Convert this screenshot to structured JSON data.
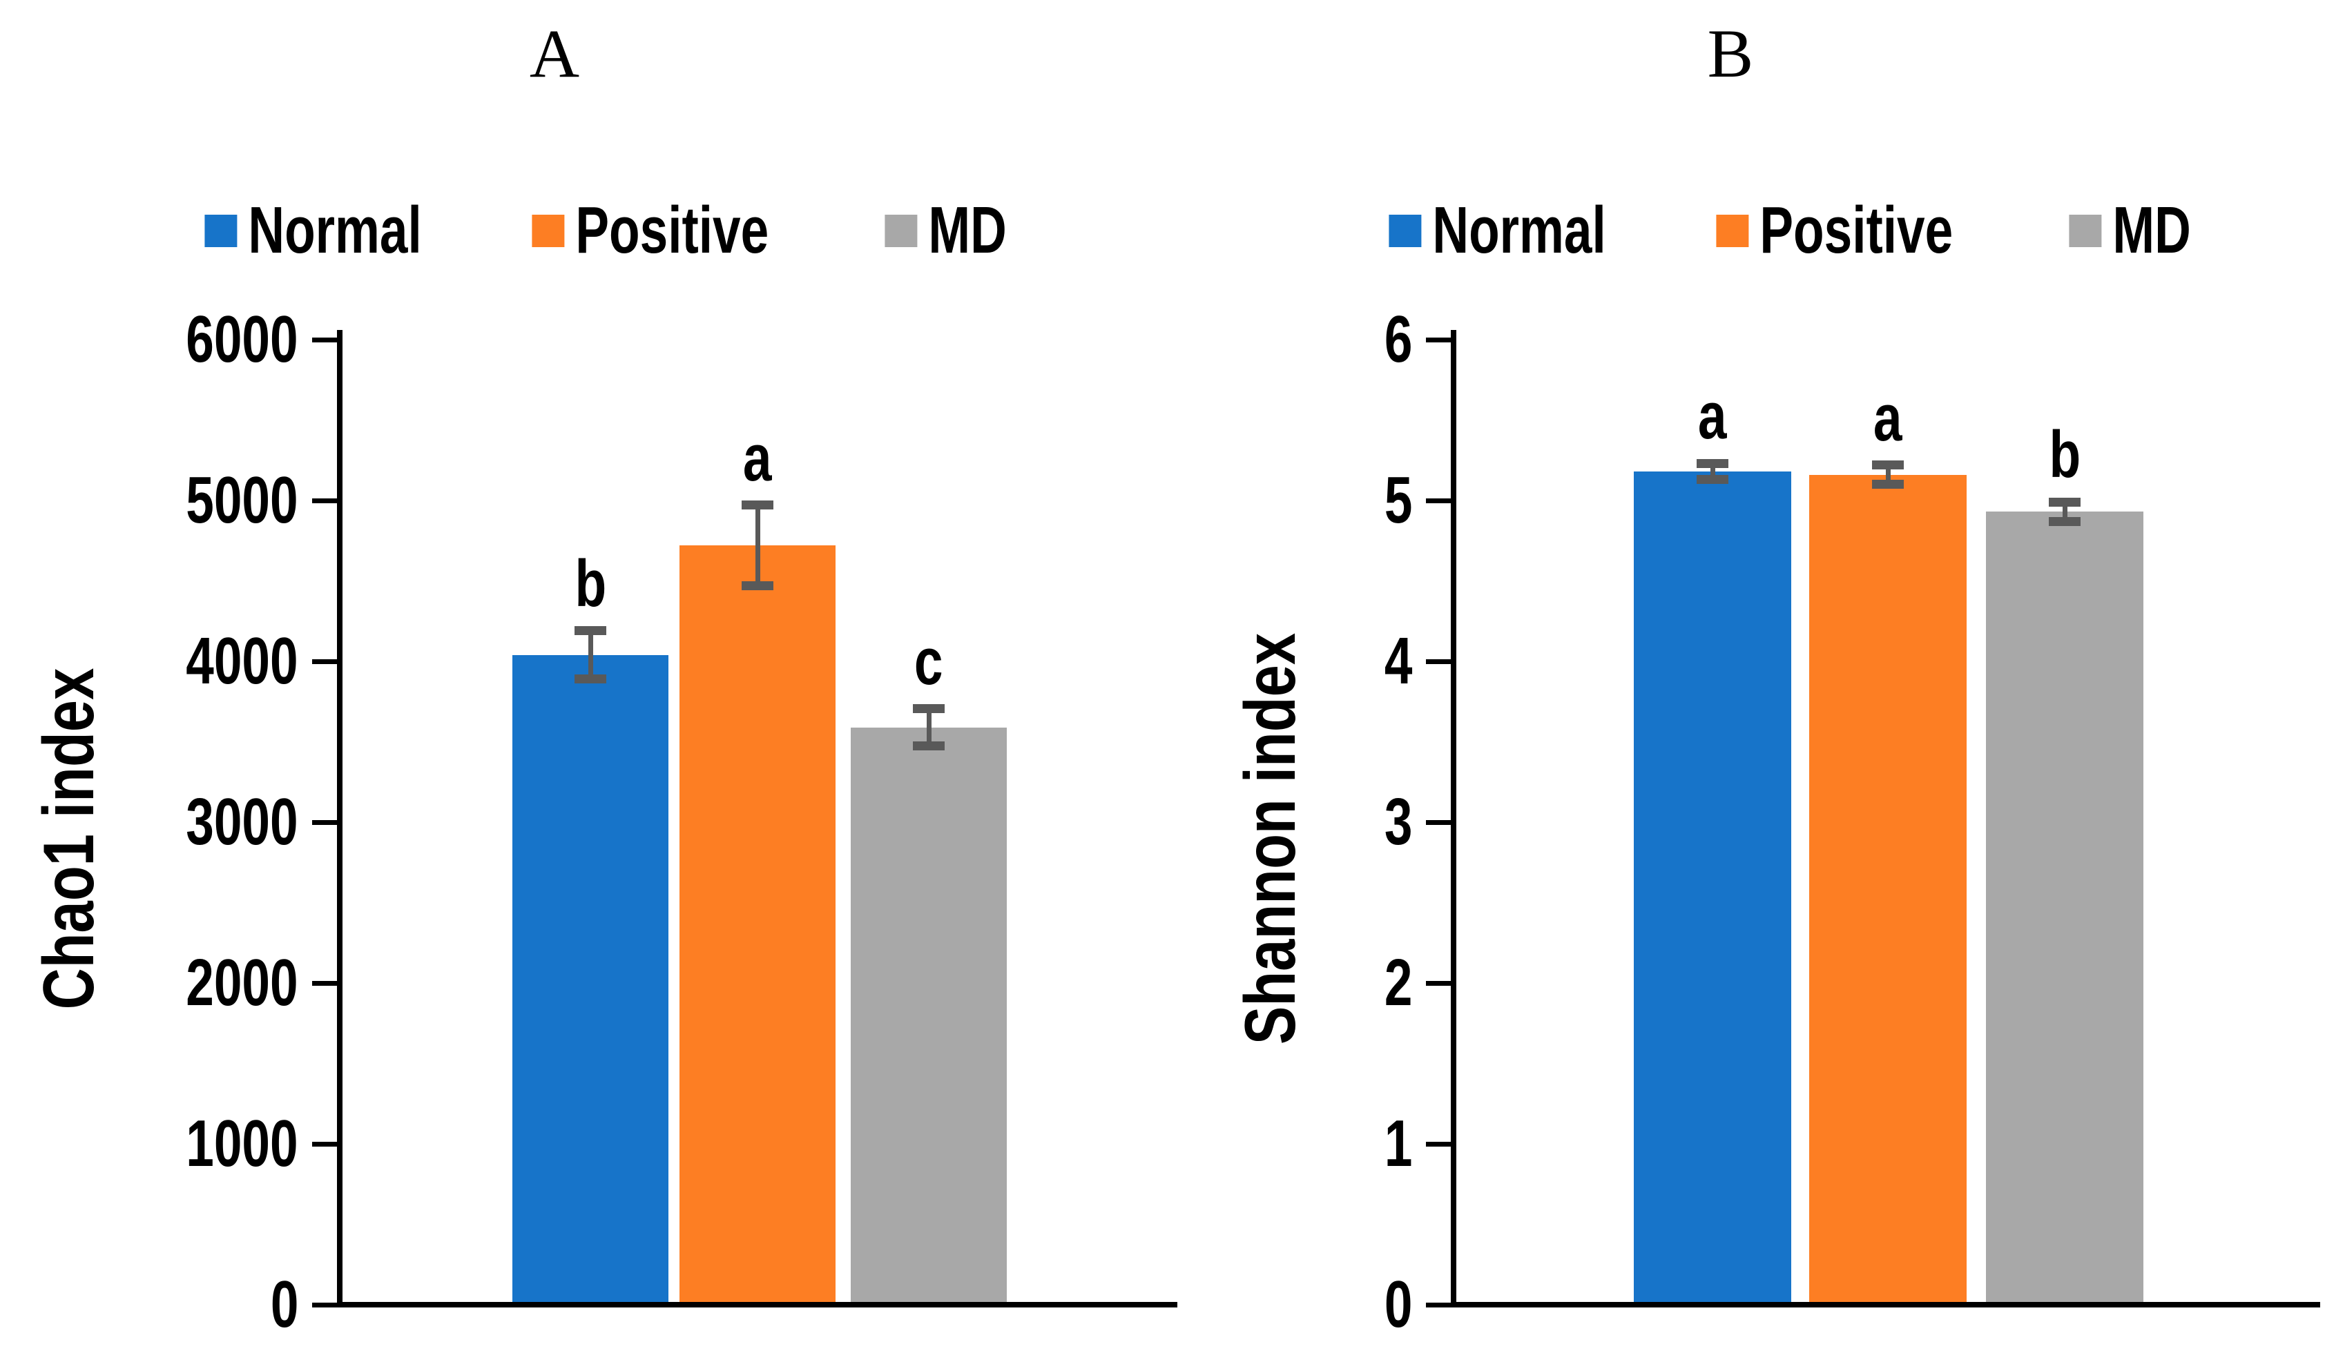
{
  "figure": {
    "background": "#ffffff"
  },
  "colors": {
    "axis": "#000000",
    "text": "#000000",
    "error_bar": "#595959",
    "normal_blue": "#1774C9",
    "positive_orange": "#FD7E23",
    "md_gray": "#A8A8A8"
  },
  "legend": {
    "items": [
      {
        "label": "Normal",
        "color": "#1774C9"
      },
      {
        "label": "Positive",
        "color": "#FD7E23"
      },
      {
        "label": "MD",
        "color": "#A8A8A8"
      }
    ]
  },
  "chart_data": [
    {
      "type": "bar",
      "panel_label": "A",
      "title": "",
      "xlabel": "",
      "ylabel": "Chao1 index",
      "ylim": [
        0,
        6000
      ],
      "yticks": [
        0,
        1000,
        2000,
        3000,
        4000,
        5000,
        6000
      ],
      "categories": [
        "Normal",
        "Positive",
        "MD"
      ],
      "values": [
        4040,
        4720,
        3590
      ],
      "errors": [
        150,
        250,
        115
      ],
      "sig_letters": [
        "b",
        "a",
        "c"
      ],
      "legend_position": "top",
      "grid": false
    },
    {
      "type": "bar",
      "panel_label": "B",
      "title": "",
      "xlabel": "",
      "ylabel": "Shannon index",
      "ylim": [
        0,
        6
      ],
      "yticks": [
        0,
        1,
        2,
        3,
        4,
        5,
        6
      ],
      "categories": [
        "Normal",
        "Positive",
        "MD"
      ],
      "values": [
        5.18,
        5.16,
        4.93
      ],
      "errors": [
        0.05,
        0.06,
        0.06
      ],
      "sig_letters": [
        "a",
        "a",
        "b"
      ],
      "legend_position": "top",
      "grid": false
    }
  ]
}
